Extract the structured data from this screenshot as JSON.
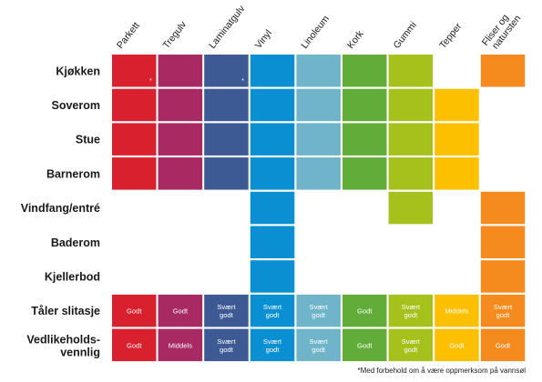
{
  "chart_data": {
    "type": "table",
    "columns": [
      "Parkett",
      "Tregulv",
      "Laminatgulv",
      "Vinyl",
      "Linoleum",
      "Kork",
      "Gummi",
      "Tepper",
      "Fliser og natursten"
    ],
    "column_colors": [
      "#d9202e",
      "#a82a63",
      "#3e5a95",
      "#0a90d2",
      "#6fb4c8",
      "#62ad3a",
      "#a6c11c",
      "#fdc000",
      "#f58a1f"
    ],
    "rows": [
      {
        "label": "Kjøkken",
        "cells": [
          1,
          1,
          1,
          1,
          1,
          1,
          1,
          0,
          1
        ],
        "markers": [
          "*",
          "",
          "*",
          "",
          "",
          "",
          "",
          "",
          ""
        ]
      },
      {
        "label": "Soverom",
        "cells": [
          1,
          1,
          1,
          1,
          1,
          1,
          1,
          1,
          0
        ]
      },
      {
        "label": "Stue",
        "cells": [
          1,
          1,
          1,
          1,
          1,
          1,
          1,
          1,
          0
        ]
      },
      {
        "label": "Barnerom",
        "cells": [
          1,
          1,
          1,
          1,
          1,
          1,
          1,
          1,
          0
        ]
      },
      {
        "label": "Vindfang/entré",
        "cells": [
          0,
          0,
          0,
          1,
          0,
          0,
          1,
          0,
          1
        ]
      },
      {
        "label": "Baderom",
        "cells": [
          0,
          0,
          0,
          1,
          0,
          0,
          0,
          0,
          1
        ]
      },
      {
        "label": "Kjellerbod",
        "cells": [
          0,
          0,
          0,
          1,
          0,
          0,
          0,
          0,
          1
        ]
      },
      {
        "label": "Tåler slitasje",
        "values": [
          "Godt",
          "Godt",
          "Svært godt",
          "Svært godt",
          "Svært godt",
          "Godt",
          "Svært godt",
          "Middels",
          "Svært godt"
        ]
      },
      {
        "label": "Vedlikeholds-vennlig",
        "values": [
          "Godt",
          "Middels",
          "Svært godt",
          "Svært godt",
          "Svært godt",
          "Godt",
          "Svært godt",
          "Godt",
          "Godt"
        ]
      }
    ],
    "footnote": "*Med forbehold om å være oppmerksom på vannsøl"
  }
}
